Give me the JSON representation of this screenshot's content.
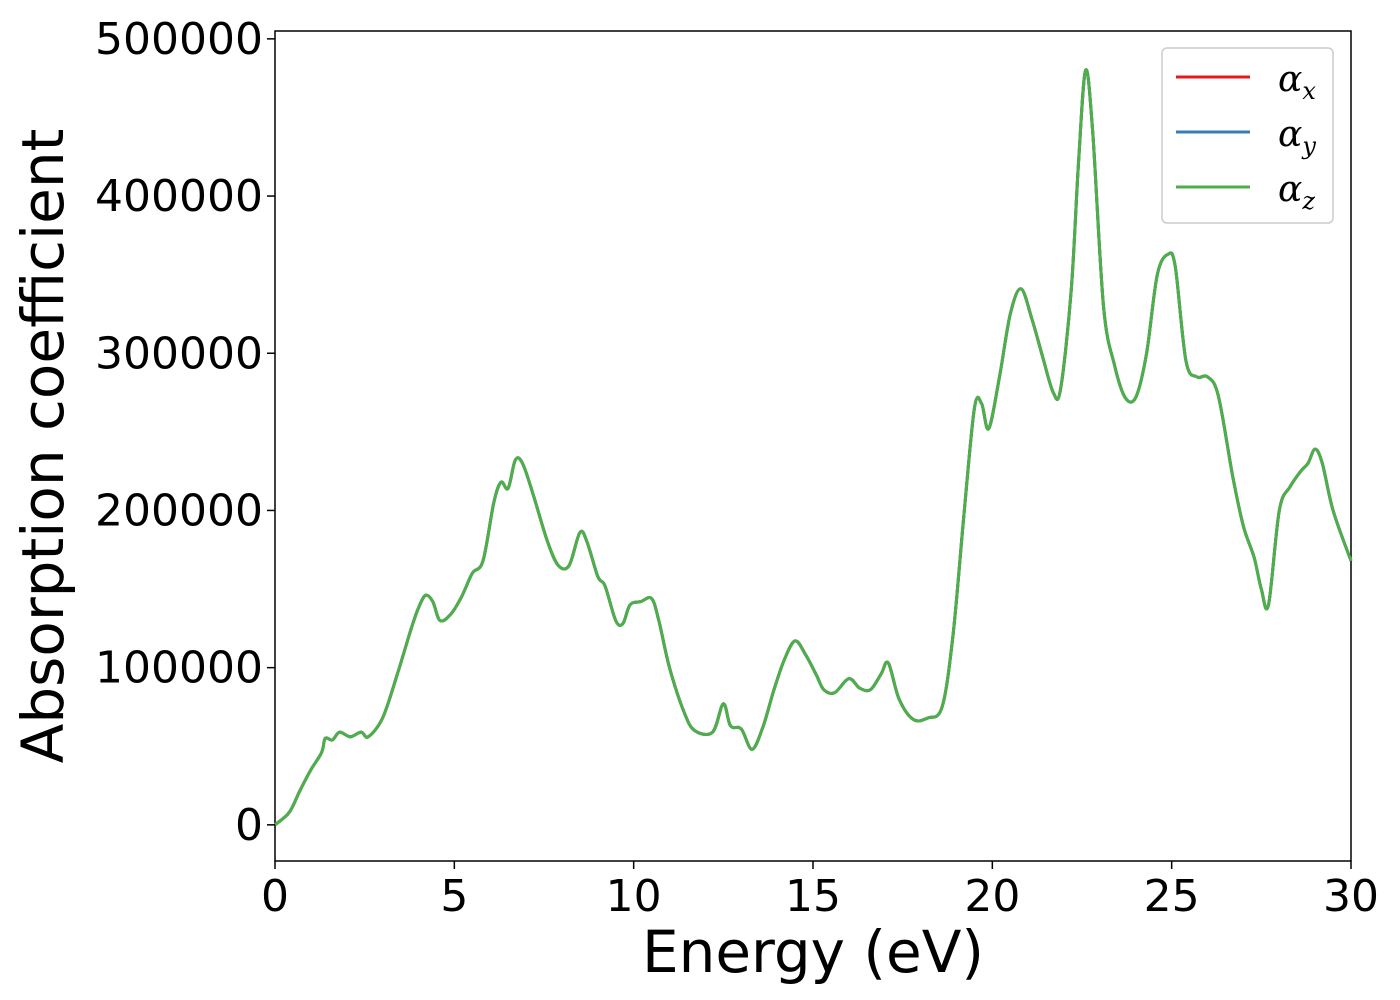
{
  "chart_data": {
    "type": "line",
    "title": "",
    "xlabel": "Energy (eV)",
    "ylabel": "Absorption coefficient",
    "xlim": [
      0,
      30
    ],
    "ylim": [
      -23000,
      505000
    ],
    "x_ticks": [
      "0",
      "5",
      "10",
      "15",
      "20",
      "25",
      "30"
    ],
    "y_ticks": [
      "0",
      "100000",
      "200000",
      "300000",
      "400000",
      "500000"
    ],
    "x_tick_values": [
      0,
      5,
      10,
      15,
      20,
      25,
      30
    ],
    "y_tick_values": [
      0,
      100000,
      200000,
      300000,
      400000,
      500000
    ],
    "grid": false,
    "legend_position": "top-right",
    "series": [
      {
        "name": "αx",
        "label_base": "α",
        "label_sub": "x",
        "color": "#e41a1c",
        "ref": "shared"
      },
      {
        "name": "αy",
        "label_base": "α",
        "label_sub": "y",
        "color": "#377eb8",
        "ref": "shared"
      },
      {
        "name": "αz",
        "label_base": "α",
        "label_sub": "z",
        "color": "#4daf4a",
        "ref": "shared"
      }
    ],
    "shared_points": [
      [
        0,
        0
      ],
      [
        0.4,
        8000
      ],
      [
        0.7,
        22000
      ],
      [
        1.0,
        35000
      ],
      [
        1.3,
        46000
      ],
      [
        1.4,
        55000
      ],
      [
        1.6,
        54000
      ],
      [
        1.8,
        59000
      ],
      [
        2.1,
        56000
      ],
      [
        2.4,
        59000
      ],
      [
        2.6,
        56000
      ],
      [
        3.0,
        68000
      ],
      [
        3.4,
        95000
      ],
      [
        3.8,
        125000
      ],
      [
        4.0,
        138000
      ],
      [
        4.2,
        146000
      ],
      [
        4.4,
        142000
      ],
      [
        4.6,
        130000
      ],
      [
        4.9,
        134000
      ],
      [
        5.2,
        145000
      ],
      [
        5.5,
        160000
      ],
      [
        5.8,
        168000
      ],
      [
        6.1,
        205000
      ],
      [
        6.3,
        218000
      ],
      [
        6.5,
        214000
      ],
      [
        6.7,
        232000
      ],
      [
        6.9,
        230000
      ],
      [
        7.2,
        210000
      ],
      [
        7.6,
        180000
      ],
      [
        7.9,
        165000
      ],
      [
        8.2,
        165000
      ],
      [
        8.5,
        186000
      ],
      [
        8.7,
        180000
      ],
      [
        9.0,
        158000
      ],
      [
        9.2,
        152000
      ],
      [
        9.5,
        130000
      ],
      [
        9.7,
        128000
      ],
      [
        9.9,
        140000
      ],
      [
        10.2,
        142000
      ],
      [
        10.5,
        144000
      ],
      [
        10.7,
        130000
      ],
      [
        11.0,
        100000
      ],
      [
        11.4,
        72000
      ],
      [
        11.7,
        60000
      ],
      [
        12.2,
        59000
      ],
      [
        12.5,
        77000
      ],
      [
        12.7,
        63000
      ],
      [
        13.0,
        61000
      ],
      [
        13.3,
        48000
      ],
      [
        13.6,
        62000
      ],
      [
        13.9,
        85000
      ],
      [
        14.2,
        105000
      ],
      [
        14.5,
        117000
      ],
      [
        14.8,
        108000
      ],
      [
        15.1,
        95000
      ],
      [
        15.3,
        86000
      ],
      [
        15.6,
        84000
      ],
      [
        16.0,
        93000
      ],
      [
        16.3,
        87000
      ],
      [
        16.6,
        86000
      ],
      [
        16.9,
        96000
      ],
      [
        17.1,
        103000
      ],
      [
        17.4,
        80000
      ],
      [
        17.8,
        67000
      ],
      [
        18.2,
        68000
      ],
      [
        18.6,
        75000
      ],
      [
        18.9,
        120000
      ],
      [
        19.2,
        195000
      ],
      [
        19.5,
        265000
      ],
      [
        19.7,
        268000
      ],
      [
        19.9,
        252000
      ],
      [
        20.2,
        285000
      ],
      [
        20.5,
        325000
      ],
      [
        20.8,
        341000
      ],
      [
        21.1,
        322000
      ],
      [
        21.4,
        298000
      ],
      [
        21.7,
        275000
      ],
      [
        21.9,
        277000
      ],
      [
        22.2,
        340000
      ],
      [
        22.4,
        420000
      ],
      [
        22.6,
        480000
      ],
      [
        22.8,
        440000
      ],
      [
        23.1,
        330000
      ],
      [
        23.4,
        293000
      ],
      [
        23.7,
        272000
      ],
      [
        24.0,
        272000
      ],
      [
        24.3,
        300000
      ],
      [
        24.6,
        350000
      ],
      [
        24.9,
        363000
      ],
      [
        25.1,
        355000
      ],
      [
        25.4,
        295000
      ],
      [
        25.7,
        285000
      ],
      [
        26.0,
        285000
      ],
      [
        26.3,
        273000
      ],
      [
        26.7,
        222000
      ],
      [
        27.0,
        190000
      ],
      [
        27.3,
        170000
      ],
      [
        27.5,
        150000
      ],
      [
        27.7,
        140000
      ],
      [
        28.0,
        200000
      ],
      [
        28.3,
        215000
      ],
      [
        28.6,
        225000
      ],
      [
        28.8,
        230000
      ],
      [
        29.0,
        239000
      ],
      [
        29.2,
        230000
      ],
      [
        29.5,
        200000
      ],
      [
        30.0,
        168000
      ]
    ]
  }
}
